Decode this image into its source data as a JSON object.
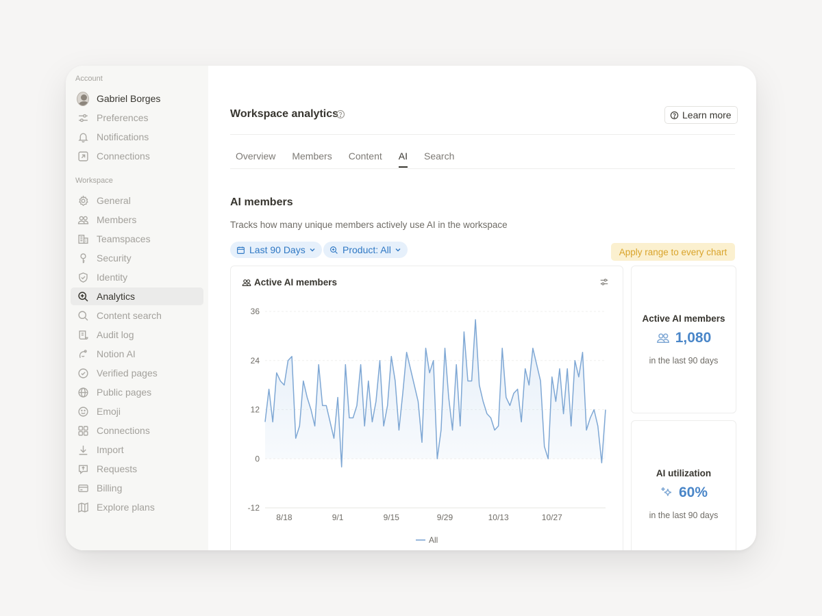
{
  "sidebar": {
    "account_label": "Account",
    "user_name": "Gabriel Borges",
    "account_items": [
      {
        "label": "Preferences",
        "icon": "sliders-icon"
      },
      {
        "label": "Notifications",
        "icon": "bell-icon"
      },
      {
        "label": "Connections",
        "icon": "arrow-up-right-box-icon"
      }
    ],
    "workspace_label": "Workspace",
    "workspace_items": [
      {
        "label": "General",
        "icon": "gear-icon"
      },
      {
        "label": "Members",
        "icon": "people-icon"
      },
      {
        "label": "Teamspaces",
        "icon": "building-icon"
      },
      {
        "label": "Security",
        "icon": "key-icon"
      },
      {
        "label": "Identity",
        "icon": "shield-check-icon"
      },
      {
        "label": "Analytics",
        "icon": "magnify-plus-icon",
        "active": true
      },
      {
        "label": "Content search",
        "icon": "search-icon"
      },
      {
        "label": "Audit log",
        "icon": "scroll-icon"
      },
      {
        "label": "Notion AI",
        "icon": "ai-face-icon"
      },
      {
        "label": "Verified pages",
        "icon": "verified-badge-icon"
      },
      {
        "label": "Public pages",
        "icon": "globe-icon"
      },
      {
        "label": "Emoji",
        "icon": "smiley-icon"
      },
      {
        "label": "Connections",
        "icon": "grid-icon"
      },
      {
        "label": "Import",
        "icon": "download-icon"
      },
      {
        "label": "Requests",
        "icon": "request-icon"
      },
      {
        "label": "Billing",
        "icon": "card-icon"
      },
      {
        "label": "Explore plans",
        "icon": "map-icon"
      }
    ]
  },
  "header": {
    "title": "Workspace analytics",
    "learn_more": "Learn more"
  },
  "tabs": [
    {
      "label": "Overview",
      "active": false
    },
    {
      "label": "Members",
      "active": false
    },
    {
      "label": "Content",
      "active": false
    },
    {
      "label": "AI",
      "active": true
    },
    {
      "label": "Search",
      "active": false
    }
  ],
  "section": {
    "title": "AI members",
    "description": "Tracks how many unique members actively use AI in the workspace"
  },
  "filters": {
    "date_range": "Last 90 Days",
    "product": "Product: All",
    "apply_all": "Apply range to every chart"
  },
  "chart_card_title": "Active AI members",
  "stats": [
    {
      "label": "Active AI members",
      "value": "1,080",
      "sub": "in the last 90 days",
      "icon": "people-icon"
    },
    {
      "label": "AI utilization",
      "value": "60%",
      "sub": "in the last 90 days",
      "icon": "sparkle-icon"
    }
  ],
  "colors": {
    "accent_blue": "#4a86c8",
    "line": "#7ea7d4",
    "apply_bg": "#fbf0cf",
    "apply_text": "#d9a42b"
  },
  "chart_data": {
    "type": "line",
    "title": "",
    "xlabel": "",
    "ylabel": "",
    "ylim": [
      -12,
      36
    ],
    "yticks": [
      36,
      24,
      12,
      0,
      -12
    ],
    "xtick_labels": [
      "8/18",
      "9/1",
      "9/15",
      "9/29",
      "10/13",
      "10/27"
    ],
    "grid": true,
    "legend_position": "bottom-center",
    "series": [
      {
        "name": "All",
        "values": [
          9,
          17,
          9,
          21,
          19,
          18,
          24,
          25,
          5,
          8,
          19,
          15,
          12,
          8,
          23,
          13,
          13,
          9,
          5,
          15,
          -2,
          23,
          10,
          10,
          13,
          23,
          8,
          19,
          9,
          14,
          24,
          8,
          13,
          25,
          19,
          7,
          16,
          26,
          22,
          18,
          14,
          4,
          27,
          21,
          24,
          0,
          7,
          27,
          15,
          7,
          23,
          8,
          31,
          19,
          19,
          34,
          18,
          14,
          11,
          10,
          7,
          8,
          27,
          15,
          13,
          16,
          17,
          9,
          22,
          18,
          27,
          23,
          19,
          3,
          0,
          20,
          14,
          22,
          11,
          22,
          8,
          24,
          20,
          26,
          7,
          10,
          12,
          8,
          -1,
          12
        ],
        "x_start_label": "8/18",
        "x_start_index": 5,
        "x_step_label_every": 14
      }
    ]
  }
}
